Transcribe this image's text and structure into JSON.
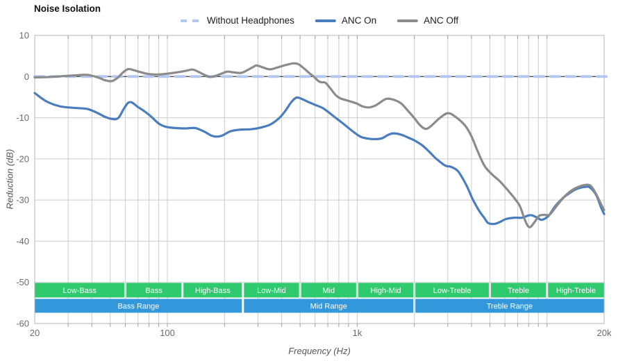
{
  "title": "Noise Isolation",
  "legend": [
    {
      "label": "Without Headphones",
      "color": "#b4c7f0",
      "style": "dashed"
    },
    {
      "label": "ANC On",
      "color": "#4a7dbe",
      "style": "solid"
    },
    {
      "label": "ANC Off",
      "color": "#8b8b8b",
      "style": "solid"
    }
  ],
  "axes": {
    "x": {
      "label": "Frequency (Hz)",
      "scale": "log",
      "min": 20,
      "max": 20000,
      "ticks": [
        {
          "f": 20,
          "label": "20"
        },
        {
          "f": 100,
          "label": "100"
        },
        {
          "f": 1000,
          "label": "1k"
        },
        {
          "f": 20000,
          "label": "20k"
        }
      ],
      "gridlines": [
        30,
        40,
        50,
        60,
        70,
        80,
        90,
        100,
        200,
        300,
        400,
        500,
        600,
        700,
        800,
        900,
        1000,
        2000,
        3000,
        4000,
        5000,
        6000,
        7000,
        8000,
        9000,
        10000
      ]
    },
    "y": {
      "label": "Reduction (dB)",
      "min": -60,
      "max": 10,
      "ticks": [
        10,
        0,
        -10,
        -20,
        -30,
        -40,
        -50,
        -60
      ]
    }
  },
  "chart_data": {
    "type": "line",
    "title": "Noise Isolation",
    "xlabel": "Frequency (Hz)",
    "ylabel": "Reduction (dB)",
    "xscale": "log",
    "xlim": [
      20,
      20000
    ],
    "ylim": [
      -60,
      10
    ],
    "grid": true,
    "legend_position": "top",
    "series": [
      {
        "name": "Without Headphones",
        "color": "#b4c7f0",
        "dashed": true,
        "width": 4,
        "points": [
          [
            20,
            0
          ],
          [
            20000,
            0
          ]
        ]
      },
      {
        "name": "ANC On",
        "color": "#4a7dbe",
        "dashed": false,
        "width": 3.2,
        "points": [
          [
            20,
            -4
          ],
          [
            23,
            -6
          ],
          [
            27,
            -7.2
          ],
          [
            32,
            -7.6
          ],
          [
            38,
            -7.9
          ],
          [
            43,
            -8.9
          ],
          [
            47,
            -9.8
          ],
          [
            51,
            -10.3
          ],
          [
            55,
            -10.1
          ],
          [
            59,
            -7.8
          ],
          [
            62,
            -6.4
          ],
          [
            65,
            -6.3
          ],
          [
            70,
            -7.4
          ],
          [
            75,
            -8.3
          ],
          [
            82,
            -9.7
          ],
          [
            90,
            -11.4
          ],
          [
            98,
            -12.2
          ],
          [
            110,
            -12.5
          ],
          [
            125,
            -12.6
          ],
          [
            140,
            -12.5
          ],
          [
            155,
            -13.3
          ],
          [
            170,
            -14.3
          ],
          [
            182,
            -14.6
          ],
          [
            195,
            -14.3
          ],
          [
            215,
            -13.3
          ],
          [
            240,
            -12.9
          ],
          [
            275,
            -12.8
          ],
          [
            310,
            -12.4
          ],
          [
            350,
            -11.6
          ],
          [
            390,
            -10
          ],
          [
            420,
            -8.2
          ],
          [
            450,
            -6.2
          ],
          [
            480,
            -5.1
          ],
          [
            520,
            -5.6
          ],
          [
            560,
            -6.3
          ],
          [
            610,
            -7
          ],
          [
            655,
            -7.6
          ],
          [
            690,
            -8.3
          ],
          [
            750,
            -9.6
          ],
          [
            815,
            -10.9
          ],
          [
            890,
            -12.3
          ],
          [
            965,
            -13.6
          ],
          [
            1050,
            -14.7
          ],
          [
            1150,
            -15.1
          ],
          [
            1250,
            -15.2
          ],
          [
            1350,
            -15
          ],
          [
            1450,
            -14.2
          ],
          [
            1550,
            -13.8
          ],
          [
            1700,
            -14.1
          ],
          [
            1850,
            -14.8
          ],
          [
            2000,
            -15.5
          ],
          [
            2200,
            -16.7
          ],
          [
            2400,
            -18.3
          ],
          [
            2600,
            -19.9
          ],
          [
            2900,
            -21.6
          ],
          [
            3100,
            -21.9
          ],
          [
            3300,
            -22.5
          ],
          [
            3450,
            -23.4
          ],
          [
            3750,
            -26.3
          ],
          [
            4050,
            -29.7
          ],
          [
            4400,
            -32.7
          ],
          [
            4650,
            -34.2
          ],
          [
            4900,
            -35.6
          ],
          [
            5300,
            -35.8
          ],
          [
            5600,
            -35.4
          ],
          [
            6100,
            -34.6
          ],
          [
            6700,
            -34.3
          ],
          [
            7400,
            -34.3
          ],
          [
            7900,
            -33.8
          ],
          [
            8300,
            -33.7
          ],
          [
            8900,
            -34.3
          ],
          [
            9400,
            -34.8
          ],
          [
            10200,
            -33.8
          ],
          [
            11000,
            -31.6
          ],
          [
            12000,
            -29.7
          ],
          [
            12700,
            -28.8
          ],
          [
            14000,
            -27.5
          ],
          [
            15000,
            -27
          ],
          [
            16000,
            -26.8
          ],
          [
            16600,
            -26.8
          ],
          [
            17500,
            -27.7
          ],
          [
            18300,
            -29.1
          ],
          [
            19300,
            -31.9
          ],
          [
            20000,
            -33.4
          ]
        ]
      },
      {
        "name": "ANC Off",
        "color": "#8b8b8b",
        "dashed": false,
        "width": 3.2,
        "points": [
          [
            20,
            -0.2
          ],
          [
            24,
            -0.1
          ],
          [
            28,
            0.1
          ],
          [
            33,
            0.3
          ],
          [
            38,
            0.4
          ],
          [
            43,
            -0.2
          ],
          [
            47,
            -0.9
          ],
          [
            51,
            -1.1
          ],
          [
            55,
            -0.2
          ],
          [
            58,
            0.9
          ],
          [
            62,
            1.8
          ],
          [
            66,
            1.6
          ],
          [
            72,
            1.1
          ],
          [
            80,
            0.6
          ],
          [
            90,
            0.5
          ],
          [
            100,
            0.7
          ],
          [
            115,
            1.1
          ],
          [
            128,
            1.5
          ],
          [
            136,
            1.7
          ],
          [
            145,
            1.2
          ],
          [
            157,
            0.4
          ],
          [
            168,
            -0.1
          ],
          [
            180,
            0.2
          ],
          [
            195,
            0.8
          ],
          [
            207,
            1.2
          ],
          [
            225,
            1
          ],
          [
            245,
            0.9
          ],
          [
            265,
            1.6
          ],
          [
            280,
            2.2
          ],
          [
            295,
            2.7
          ],
          [
            315,
            2.3
          ],
          [
            340,
            1.8
          ],
          [
            355,
            1.8
          ],
          [
            380,
            2.2
          ],
          [
            420,
            2.8
          ],
          [
            460,
            3.2
          ],
          [
            490,
            3
          ],
          [
            530,
            1.8
          ],
          [
            560,
            0.8
          ],
          [
            590,
            0
          ],
          [
            625,
            -1.1
          ],
          [
            650,
            -1.4
          ],
          [
            680,
            -1.5
          ],
          [
            720,
            -2.8
          ],
          [
            770,
            -4.5
          ],
          [
            815,
            -5.3
          ],
          [
            870,
            -5.7
          ],
          [
            930,
            -6.1
          ],
          [
            1000,
            -6.6
          ],
          [
            1060,
            -7.2
          ],
          [
            1150,
            -7.5
          ],
          [
            1250,
            -7
          ],
          [
            1350,
            -6
          ],
          [
            1430,
            -5.4
          ],
          [
            1550,
            -5.6
          ],
          [
            1700,
            -6.5
          ],
          [
            1850,
            -8.3
          ],
          [
            2000,
            -10.1
          ],
          [
            2150,
            -11.9
          ],
          [
            2300,
            -12.7
          ],
          [
            2450,
            -12
          ],
          [
            2700,
            -10.2
          ],
          [
            3000,
            -8.9
          ],
          [
            3300,
            -9.8
          ],
          [
            3700,
            -11.9
          ],
          [
            4000,
            -14.5
          ],
          [
            4300,
            -18
          ],
          [
            4700,
            -21.8
          ],
          [
            5200,
            -24
          ],
          [
            5600,
            -25.3
          ],
          [
            6000,
            -26.8
          ],
          [
            6400,
            -28.3
          ],
          [
            6800,
            -29.8
          ],
          [
            7200,
            -31.5
          ],
          [
            7600,
            -34.5
          ],
          [
            7900,
            -36.2
          ],
          [
            8200,
            -36.5
          ],
          [
            8700,
            -35
          ],
          [
            9100,
            -33.8
          ],
          [
            9700,
            -33.6
          ],
          [
            10300,
            -33.6
          ],
          [
            11000,
            -32
          ],
          [
            12000,
            -29.8
          ],
          [
            13000,
            -28.2
          ],
          [
            14000,
            -27.2
          ],
          [
            15000,
            -26.6
          ],
          [
            16000,
            -26.3
          ],
          [
            16800,
            -26.4
          ],
          [
            17500,
            -27.3
          ],
          [
            18300,
            -28.9
          ],
          [
            19300,
            -31.1
          ],
          [
            20000,
            -32.4
          ]
        ]
      }
    ]
  },
  "bands": {
    "sub_color": "#2fc96e",
    "main_color": "#3398db",
    "text_color": "#ffffff",
    "sub": [
      {
        "label": "Low-Bass",
        "from": 20,
        "to": 60
      },
      {
        "label": "Bass",
        "from": 60,
        "to": 120
      },
      {
        "label": "High-Bass",
        "from": 120,
        "to": 250
      },
      {
        "label": "Low-Mid",
        "from": 250,
        "to": 500
      },
      {
        "label": "Mid",
        "from": 500,
        "to": 1000
      },
      {
        "label": "High-Mid",
        "from": 1000,
        "to": 2000
      },
      {
        "label": "Low-Treble",
        "from": 2000,
        "to": 5000
      },
      {
        "label": "Treble",
        "from": 5000,
        "to": 10000
      },
      {
        "label": "High-Treble",
        "from": 10000,
        "to": 20000
      }
    ],
    "main": [
      {
        "label": "Bass Range",
        "from": 20,
        "to": 250
      },
      {
        "label": "Mid Range",
        "from": 250,
        "to": 2000
      },
      {
        "label": "Treble Range",
        "from": 2000,
        "to": 20000
      }
    ]
  },
  "colors": {
    "grid": "#cccccc",
    "border": "#b5b5b5",
    "zero_line": "#3a3a3a",
    "tick": "#9e9e9e",
    "tick_label": "#6b6b6b"
  }
}
